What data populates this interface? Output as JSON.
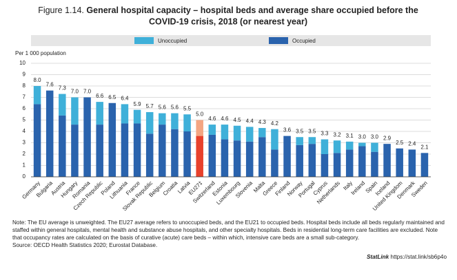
{
  "chart_data": {
    "type": "stacked-bar",
    "title_prefix": "Figure 1.14.",
    "title": "General hospital capacity – hospital beds and average share occupied before the COVID-19 crisis, 2018 (or nearest year)",
    "ylabel": "Per 1 000 population",
    "categories": [
      "Germany",
      "Bulgaria",
      "Austria",
      "Hungary",
      "Romania",
      "Czech Republic",
      "Poland",
      "Lithuania",
      "France",
      "Slovak Republic",
      "Belgium",
      "Croatia",
      "Latvia",
      "EU27‡",
      "Switzerland",
      "Estonia",
      "Luxembourg",
      "Slovenia",
      "Malta",
      "Greece",
      "Finland",
      "Norway",
      "Portugal",
      "Cyprus",
      "Netherlands",
      "Italy",
      "Ireland",
      "Spain",
      "Iceland",
      "United Kingdom",
      "Denmark",
      "Sweden"
    ],
    "series": [
      {
        "name": "Occupied",
        "color": "#2a63ad",
        "values": [
          6.4,
          7.6,
          5.4,
          4.6,
          7.0,
          4.6,
          6.5,
          4.7,
          4.7,
          3.8,
          4.6,
          4.2,
          4.0,
          3.6,
          3.7,
          3.3,
          3.2,
          3.1,
          3.5,
          2.4,
          3.6,
          2.8,
          2.9,
          2.0,
          2.1,
          2.4,
          2.7,
          2.2,
          2.9,
          2.5,
          2.4,
          2.1
        ]
      },
      {
        "name": "Unoccupied",
        "color": "#3fb0d9",
        "values": [
          1.6,
          null,
          1.9,
          2.4,
          null,
          2.0,
          null,
          1.7,
          1.2,
          1.9,
          1.0,
          1.4,
          1.5,
          1.4,
          0.9,
          1.3,
          1.3,
          1.3,
          0.8,
          1.8,
          null,
          0.7,
          0.6,
          1.3,
          1.1,
          0.7,
          0.3,
          0.8,
          null,
          null,
          null,
          null
        ]
      }
    ],
    "total_labels": [
      "8.0",
      "7.6",
      "7.3",
      "7.0",
      "7.0",
      "6.6",
      "6.5",
      "6.4",
      "5.9",
      "5.7",
      "5.6",
      "5.6",
      "5.5",
      "5.0",
      "4.6",
      "4.6",
      "4.5",
      "4.4",
      "4.3",
      "4.2",
      "3.6",
      "3.5",
      "3.5",
      "3.3",
      "3.2",
      "3.1",
      "3.0",
      "3.0",
      "2.9",
      "2.5",
      "2.4",
      "2.1"
    ],
    "highlight": 13,
    "highlight_colors": [
      "#e8412c",
      "#f4a582"
    ],
    "ylim": [
      0,
      10
    ],
    "yticks": [
      0,
      1,
      2,
      3,
      4,
      5,
      6,
      7,
      8,
      9,
      10
    ],
    "grid": true
  },
  "note": "Note: The EU average is unweighted. The EU27 average refers to unoccupied beds, and the EU21 to occupied beds. Hospital beds include all beds regularly maintained and staffed within general hospitals, mental health and substance abuse hospitals, and other specialty hospitals. Beds in residential long-term care facilities are excluded. Note that occupancy rates are calculated on the basis of curative (acute) care beds – within which, intensive care beds are a small sub-category.",
  "source": "Source: OECD Health Statistics 2020; Eurostat Database.",
  "statlink": {
    "brand": "StatLink",
    "url": "https://stat.link/sb6p4o"
  }
}
